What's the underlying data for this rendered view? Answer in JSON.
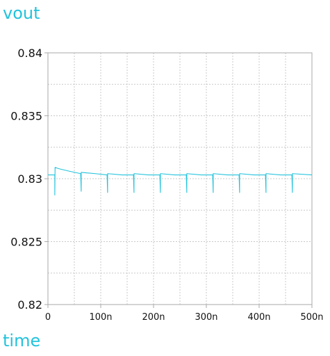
{
  "chart_data": {
    "type": "line",
    "title": "",
    "ylabel": "vout",
    "xlabel": "time",
    "xlim": [
      0,
      500
    ],
    "ylim": [
      0.82,
      0.84
    ],
    "x_ticks": [
      "0",
      "100n",
      "200n",
      "300n",
      "400n",
      "500n"
    ],
    "x_tick_values": [
      0,
      100,
      200,
      300,
      400,
      500
    ],
    "y_ticks": [
      "0.84",
      "0.835",
      "0.83",
      "0.825",
      "0.82"
    ],
    "y_tick_values": [
      0.84,
      0.835,
      0.83,
      0.825,
      0.82
    ],
    "grid": true,
    "series": [
      {
        "color": "#22c3dc",
        "x": [
          0,
          13,
          13,
          13.5,
          20,
          40,
          62,
          63,
          63,
          63.5,
          90,
          112,
          113,
          113,
          113.5,
          140,
          162,
          163,
          163,
          163.5,
          190,
          212,
          213,
          213,
          213.5,
          240,
          262,
          263,
          263,
          263.5,
          290,
          312,
          313,
          313,
          313.5,
          340,
          362,
          363,
          363,
          363.5,
          390,
          412,
          413,
          413,
          413.5,
          440,
          462,
          463,
          463,
          463.5,
          500
        ],
        "y": [
          0.8303,
          0.8303,
          0.8287,
          0.8309,
          0.8308,
          0.8306,
          0.8304,
          0.829,
          0.8305,
          0.8305,
          0.8304,
          0.8303,
          0.8289,
          0.8304,
          0.8304,
          0.8303,
          0.8303,
          0.8289,
          0.8304,
          0.8304,
          0.8303,
          0.8303,
          0.8289,
          0.8304,
          0.8304,
          0.8303,
          0.8303,
          0.8289,
          0.8304,
          0.8304,
          0.8303,
          0.8303,
          0.8289,
          0.8304,
          0.8304,
          0.8303,
          0.8303,
          0.8289,
          0.8304,
          0.8304,
          0.8303,
          0.8303,
          0.8289,
          0.8304,
          0.8304,
          0.8303,
          0.8303,
          0.8289,
          0.8304,
          0.8304,
          0.8303
        ]
      }
    ]
  },
  "colors": {
    "trace": "#22c3dc",
    "label": "#22c3dc",
    "axis": "#aaaaaa",
    "grid": "#c8c8c8",
    "tick_text": "#111111"
  }
}
